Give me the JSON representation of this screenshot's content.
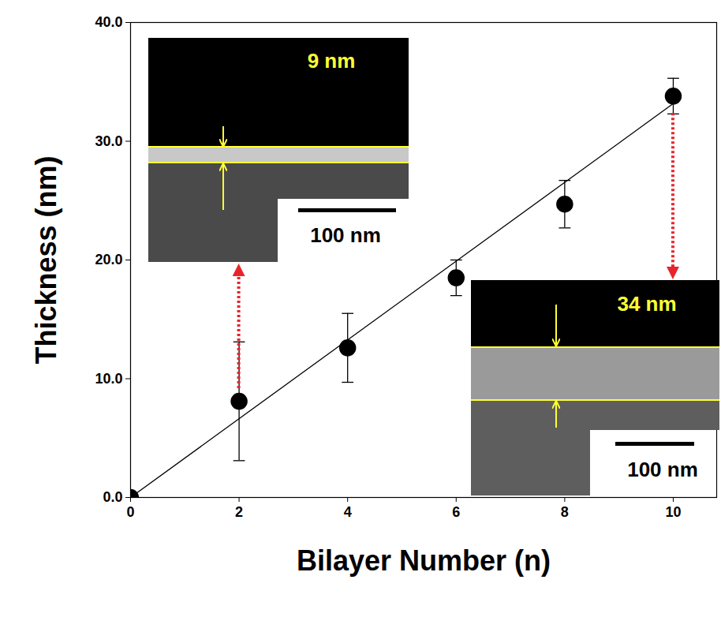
{
  "chart_data": {
    "type": "scatter",
    "x_label": "Bilayer Number (n)",
    "y_label": "Thickness (nm)",
    "x": [
      0,
      2,
      4,
      6,
      8,
      10
    ],
    "values": [
      0,
      8.1,
      12.6,
      18.5,
      24.7,
      33.8
    ],
    "errors": [
      null,
      5.0,
      2.9,
      1.5,
      2.0,
      1.5
    ],
    "color": "#000000",
    "marker": "circle",
    "fit_line": {
      "type": "line",
      "x": [
        0,
        10.1
      ],
      "values": [
        0,
        33.5
      ],
      "color": "#000000"
    },
    "xlim": [
      0,
      10.8
    ],
    "xticks": [
      0,
      2,
      4,
      6,
      8,
      10
    ],
    "ylim": [
      0,
      40
    ],
    "yticks": [
      {
        "value": 0,
        "label": "0.0"
      },
      {
        "value": 10,
        "label": "10.0"
      },
      {
        "value": 20,
        "label": "20.0"
      },
      {
        "value": 30,
        "label": "30.0"
      },
      {
        "value": 40,
        "label": "40.0"
      }
    ],
    "grid": false,
    "insets": [
      {
        "x": 2,
        "thickness_label": "9 nm",
        "scale_bar": "100 nm"
      },
      {
        "x": 10,
        "thickness_label": "34 nm",
        "scale_bar": "100 nm"
      }
    ]
  }
}
